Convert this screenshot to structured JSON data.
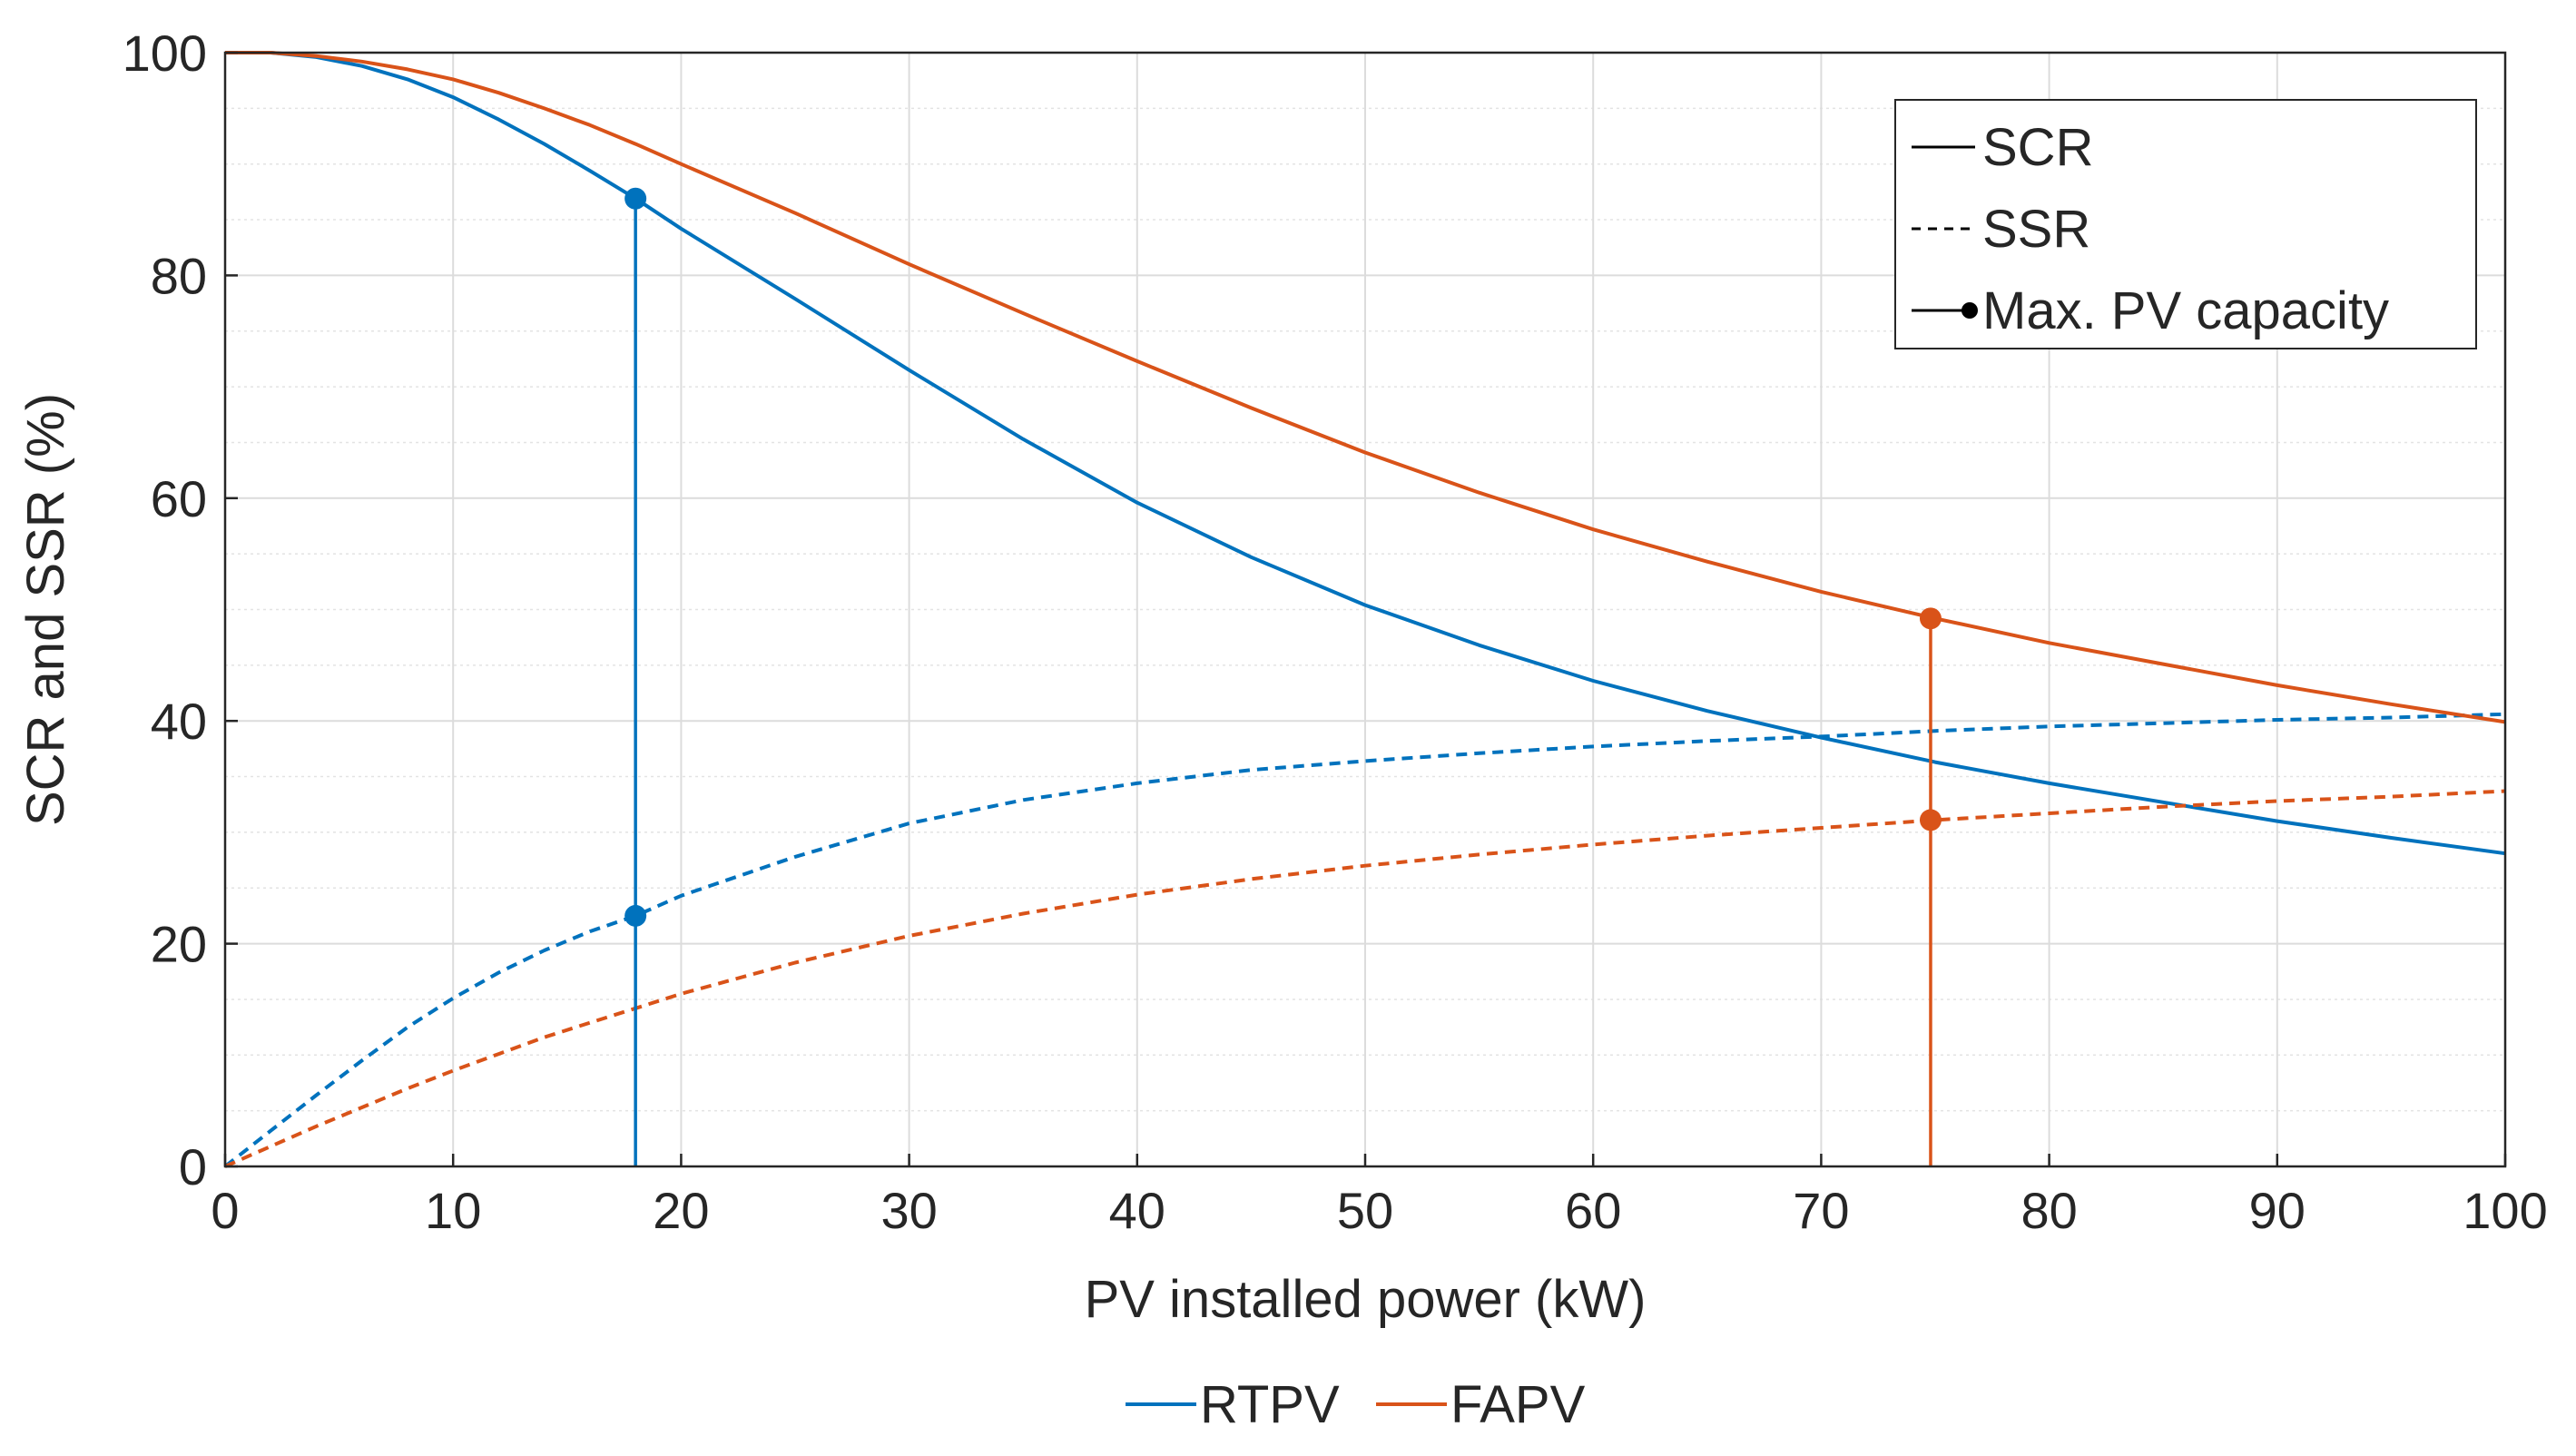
{
  "chart_data": {
    "type": "line",
    "title": "",
    "xlabel": "PV installed power (kW)",
    "ylabel": "SCR and SSR (%)",
    "xlim": [
      0,
      100
    ],
    "ylim": [
      0,
      100
    ],
    "xticks": [
      0,
      10,
      20,
      30,
      40,
      50,
      60,
      70,
      80,
      90,
      100
    ],
    "yticks": [
      0,
      20,
      40,
      60,
      80,
      100
    ],
    "xtick_labels": [
      "0",
      "10",
      "20",
      "30",
      "40",
      "50",
      "60",
      "70",
      "80",
      "90",
      "100"
    ],
    "ytick_labels": [
      "0",
      "20",
      "40",
      "60",
      "80",
      "100"
    ],
    "grid": true,
    "minor_grid_y": true,
    "series": [
      {
        "name": "RTPV SCR",
        "group": "RTPV",
        "metric": "SCR",
        "style": "solid",
        "color": "#0072BD",
        "x": [
          0,
          2,
          4,
          6,
          8,
          10,
          12,
          14,
          16,
          18,
          20,
          25,
          30,
          35,
          40,
          45,
          50,
          55,
          60,
          65,
          70,
          75,
          80,
          85,
          90,
          95,
          100
        ],
        "y": [
          100,
          100,
          99.6,
          98.8,
          97.6,
          96.0,
          94.0,
          91.8,
          89.4,
          86.9,
          84.2,
          77.9,
          71.5,
          65.3,
          59.6,
          54.7,
          50.4,
          46.8,
          43.6,
          40.9,
          38.5,
          36.3,
          34.4,
          32.7,
          31.0,
          29.5,
          28.1
        ]
      },
      {
        "name": "RTPV SSR",
        "group": "RTPV",
        "metric": "SSR",
        "style": "dashed",
        "color": "#0072BD",
        "x": [
          0,
          2,
          4,
          6,
          8,
          10,
          12,
          14,
          16,
          18,
          20,
          25,
          30,
          35,
          40,
          45,
          50,
          55,
          60,
          65,
          70,
          75,
          80,
          85,
          90,
          95,
          100
        ],
        "y": [
          0,
          3.2,
          6.4,
          9.5,
          12.5,
          15.1,
          17.4,
          19.4,
          21.1,
          22.5,
          24.3,
          27.8,
          30.8,
          32.9,
          34.4,
          35.6,
          36.4,
          37.1,
          37.7,
          38.2,
          38.6,
          39.1,
          39.5,
          39.8,
          40.1,
          40.3,
          40.6
        ]
      },
      {
        "name": "FAPV SCR",
        "group": "FAPV",
        "metric": "SCR",
        "style": "solid",
        "color": "#D95319",
        "x": [
          0,
          2,
          4,
          6,
          8,
          10,
          12,
          14,
          16,
          18,
          20,
          25,
          30,
          35,
          40,
          45,
          50,
          55,
          60,
          65,
          70,
          75,
          80,
          85,
          90,
          95,
          100
        ],
        "y": [
          100,
          100,
          99.7,
          99.2,
          98.5,
          97.6,
          96.4,
          95.0,
          93.5,
          91.8,
          90.0,
          85.6,
          81.0,
          76.6,
          72.3,
          68.1,
          64.1,
          60.5,
          57.2,
          54.3,
          51.6,
          49.2,
          47.0,
          45.1,
          43.2,
          41.5,
          39.9
        ]
      },
      {
        "name": "FAPV SSR",
        "group": "FAPV",
        "metric": "SSR",
        "style": "dashed",
        "color": "#D95319",
        "x": [
          0,
          2,
          4,
          6,
          8,
          10,
          12,
          14,
          16,
          18,
          20,
          25,
          30,
          35,
          40,
          45,
          50,
          55,
          60,
          65,
          70,
          75,
          80,
          85,
          90,
          95,
          100
        ],
        "y": [
          0,
          1.8,
          3.6,
          5.3,
          7.0,
          8.6,
          10.1,
          11.6,
          12.9,
          14.2,
          15.5,
          18.3,
          20.7,
          22.7,
          24.4,
          25.8,
          27.0,
          28.0,
          28.9,
          29.7,
          30.4,
          31.1,
          31.7,
          32.3,
          32.8,
          33.2,
          33.7
        ]
      }
    ],
    "markers": [
      {
        "group": "RTPV",
        "label": "Max. PV capacity",
        "x": 18,
        "scr": 86.9,
        "ssr": 22.5,
        "color": "#0072BD"
      },
      {
        "group": "FAPV",
        "label": "Max. PV capacity",
        "x": 74.8,
        "scr": 49.2,
        "ssr": 31.1,
        "color": "#D95319"
      }
    ],
    "legend_style": {
      "placement": "top-right",
      "entries": [
        {
          "label": "SCR",
          "kind": "solid"
        },
        {
          "label": "SSR",
          "kind": "dashed"
        },
        {
          "label": "Max. PV capacity",
          "kind": "marker"
        }
      ]
    },
    "legend_series": {
      "placement": "bottom-center",
      "entries": [
        {
          "label": "RTPV",
          "color": "#0072BD"
        },
        {
          "label": "FAPV",
          "color": "#D95319"
        }
      ]
    }
  }
}
